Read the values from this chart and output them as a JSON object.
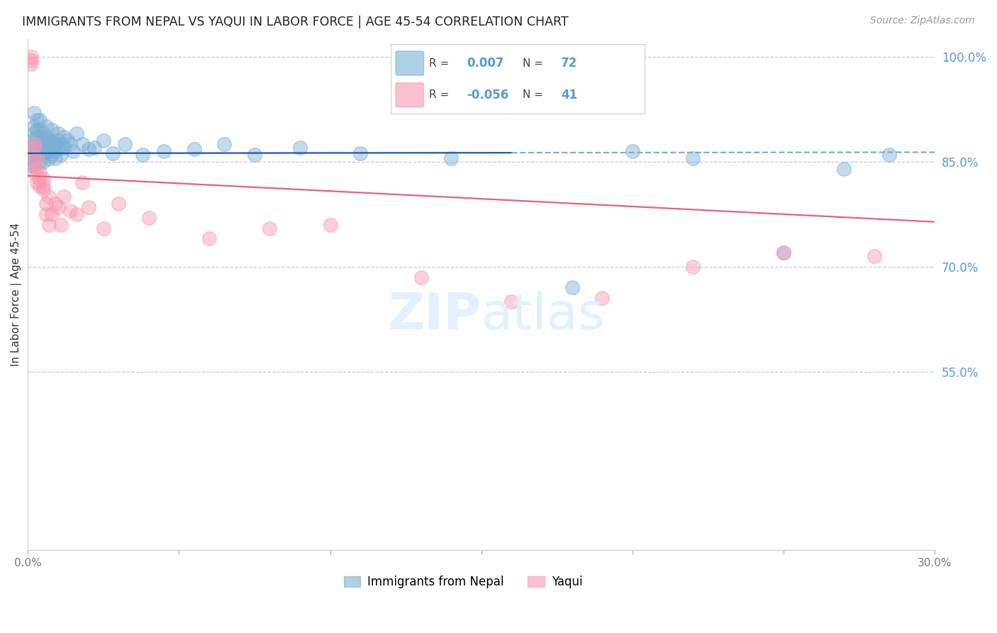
{
  "title": "IMMIGRANTS FROM NEPAL VS YAQUI IN LABOR FORCE | AGE 45-54 CORRELATION CHART",
  "source": "Source: ZipAtlas.com",
  "ylabel": "In Labor Force | Age 45-54",
  "xlim": [
    0.0,
    0.3
  ],
  "ylim": [
    0.295,
    1.025
  ],
  "xticks": [
    0.0,
    0.05,
    0.1,
    0.15,
    0.2,
    0.25,
    0.3
  ],
  "xtick_labels": [
    "0.0%",
    "",
    "",
    "",
    "",
    "",
    "30.0%"
  ],
  "yticks_right": [
    0.55,
    0.7,
    0.85,
    1.0
  ],
  "ytick_labels_right": [
    "55.0%",
    "70.0%",
    "85.0%",
    "100.0%"
  ],
  "nepal_R": 0.007,
  "nepal_N": 72,
  "yaqui_R": -0.056,
  "yaqui_N": 41,
  "nepal_color": "#7BAFD4",
  "yaqui_color": "#F898B0",
  "nepal_line_color": "#1A56B0",
  "yaqui_line_color": "#E8607A",
  "dashed_line_color": "#7BAFD4",
  "grid_color": "#BBBBCC",
  "background_color": "#FFFFFF",
  "right_axis_color": "#5599DD",
  "legend_label_nepal": "Immigrants from Nepal",
  "legend_label_yaqui": "Yaqui",
  "nepal_x": [
    0.001,
    0.001,
    0.001,
    0.001,
    0.001,
    0.002,
    0.002,
    0.002,
    0.002,
    0.002,
    0.002,
    0.003,
    0.003,
    0.003,
    0.003,
    0.003,
    0.004,
    0.004,
    0.004,
    0.004,
    0.004,
    0.005,
    0.005,
    0.005,
    0.005,
    0.005,
    0.006,
    0.006,
    0.006,
    0.006,
    0.007,
    0.007,
    0.007,
    0.007,
    0.008,
    0.008,
    0.008,
    0.008,
    0.009,
    0.009,
    0.009,
    0.01,
    0.01,
    0.01,
    0.011,
    0.011,
    0.012,
    0.012,
    0.013,
    0.014,
    0.015,
    0.016,
    0.018,
    0.02,
    0.022,
    0.025,
    0.028,
    0.032,
    0.038,
    0.045,
    0.055,
    0.065,
    0.075,
    0.09,
    0.11,
    0.14,
    0.18,
    0.2,
    0.22,
    0.25,
    0.27,
    0.285
  ],
  "nepal_y": [
    0.862,
    0.855,
    0.87,
    0.88,
    0.845,
    0.875,
    0.89,
    0.86,
    0.845,
    0.9,
    0.92,
    0.885,
    0.87,
    0.86,
    0.91,
    0.895,
    0.875,
    0.865,
    0.85,
    0.895,
    0.91,
    0.88,
    0.87,
    0.86,
    0.85,
    0.89,
    0.885,
    0.875,
    0.865,
    0.9,
    0.875,
    0.865,
    0.855,
    0.88,
    0.88,
    0.87,
    0.86,
    0.895,
    0.875,
    0.865,
    0.855,
    0.88,
    0.87,
    0.89,
    0.875,
    0.86,
    0.885,
    0.87,
    0.88,
    0.875,
    0.865,
    0.89,
    0.875,
    0.868,
    0.87,
    0.88,
    0.862,
    0.875,
    0.86,
    0.865,
    0.868,
    0.875,
    0.86,
    0.87,
    0.862,
    0.855,
    0.67,
    0.865,
    0.855,
    0.72,
    0.84,
    0.86
  ],
  "yaqui_x": [
    0.001,
    0.001,
    0.001,
    0.002,
    0.002,
    0.002,
    0.002,
    0.003,
    0.003,
    0.003,
    0.004,
    0.004,
    0.004,
    0.005,
    0.005,
    0.005,
    0.006,
    0.006,
    0.007,
    0.007,
    0.008,
    0.009,
    0.01,
    0.011,
    0.012,
    0.014,
    0.016,
    0.018,
    0.02,
    0.025,
    0.03,
    0.04,
    0.06,
    0.08,
    0.1,
    0.13,
    0.16,
    0.19,
    0.22,
    0.25,
    0.28
  ],
  "yaqui_y": [
    1.0,
    0.995,
    0.99,
    0.855,
    0.87,
    0.875,
    0.835,
    0.82,
    0.84,
    0.855,
    0.815,
    0.835,
    0.825,
    0.81,
    0.825,
    0.815,
    0.775,
    0.79,
    0.8,
    0.76,
    0.775,
    0.79,
    0.785,
    0.76,
    0.8,
    0.78,
    0.775,
    0.82,
    0.785,
    0.755,
    0.79,
    0.77,
    0.74,
    0.755,
    0.76,
    0.685,
    0.65,
    0.655,
    0.7,
    0.72,
    0.715
  ],
  "nepal_line_x": [
    0.0,
    0.16,
    0.16,
    0.3
  ],
  "nepal_line_style": [
    "solid",
    "solid",
    "dashed",
    "dashed"
  ],
  "nepal_line_intercept": 0.862,
  "nepal_line_slope": 0.005,
  "yaqui_line_intercept": 0.83,
  "yaqui_line_slope": -0.22
}
